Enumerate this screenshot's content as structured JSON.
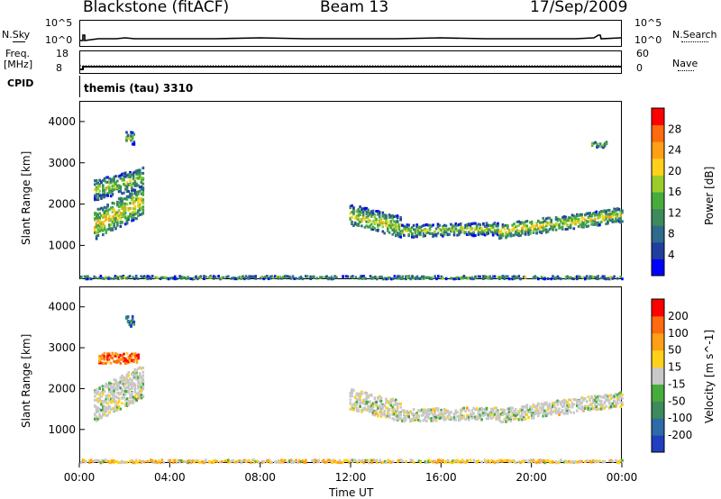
{
  "header": {
    "station": "Blackstone (fitACF)",
    "beam": "Beam 13",
    "date": "17/Sep/2009"
  },
  "summary": {
    "nsky_label": "N.Sky",
    "nsky_ticks": [
      "10^5",
      "10^0"
    ],
    "nsearch_label": "N.Search",
    "nsearch_ticks": [
      "10^5",
      "10^0"
    ],
    "freq_label": "Freq.",
    "freq_unit": "[MHz]",
    "freq_ticks": [
      "18",
      "8"
    ],
    "nave_label": "Nave",
    "nave_ticks": [
      "60",
      "0"
    ],
    "cpid_label": "CPID",
    "cpid_value": "themis (tau) 3310"
  },
  "chart_data": [
    {
      "type": "heatmap",
      "title": "",
      "xlabel": "Time UT",
      "ylabel": "Slant Range [km]",
      "x_ticks": [
        "00:00",
        "04:00",
        "08:00",
        "12:00",
        "16:00",
        "20:00",
        "00:00"
      ],
      "xlim_hours": [
        0,
        24
      ],
      "ylim": [
        180,
        4500
      ],
      "y_ticks": [
        1000,
        2000,
        3000,
        4000
      ],
      "colorbar": {
        "label": "Power [dB]",
        "ticks": [
          "4",
          "8",
          "12",
          "16",
          "20",
          "24",
          "28"
        ],
        "colors": [
          "#0000ff",
          "#1f3f9f",
          "#2e6a8c",
          "#3d8a5c",
          "#46ad3c",
          "#9bcc2a",
          "#ffd11a",
          "#ff9f16",
          "#ff6a10",
          "#ff0000"
        ]
      },
      "bands": [
        {
          "t0": 0.6,
          "t1": 2.8,
          "r_center": 1800,
          "r_width": 700,
          "slope": 600,
          "level": 0.55
        },
        {
          "t0": 0.6,
          "t1": 2.8,
          "r_center": 2500,
          "r_width": 500,
          "slope": 300,
          "level": 0.3
        },
        {
          "t0": 11.9,
          "t1": 14.2,
          "r_center": 1600,
          "r_width": 500,
          "slope": -300,
          "level": 0.4
        },
        {
          "t0": 14.2,
          "t1": 18.5,
          "r_center": 1380,
          "r_width": 300,
          "slope": 50,
          "level": 0.3
        },
        {
          "t0": 18.5,
          "t1": 24.0,
          "r_center": 1550,
          "r_width": 350,
          "slope": 400,
          "level": 0.5
        },
        {
          "t0": 2.0,
          "t1": 2.4,
          "r_center": 3600,
          "r_width": 300,
          "slope": 0,
          "level": 0.2
        },
        {
          "t0": 22.6,
          "t1": 23.3,
          "r_center": 3450,
          "r_width": 150,
          "slope": 0,
          "level": 0.2
        },
        {
          "t0": 0.0,
          "t1": 24.0,
          "r_center": 230,
          "r_width": 70,
          "slope": 0,
          "level": 0.2
        }
      ]
    },
    {
      "type": "heatmap",
      "title": "",
      "xlabel": "Time UT",
      "ylabel": "Slant Range [km]",
      "x_ticks": [
        "00:00",
        "04:00",
        "08:00",
        "12:00",
        "16:00",
        "20:00",
        "00:00"
      ],
      "xlim_hours": [
        0,
        24
      ],
      "ylim": [
        180,
        4500
      ],
      "y_ticks": [
        1000,
        2000,
        3000,
        4000
      ],
      "colorbar": {
        "label": "Velocity [m s^-1]",
        "ticks": [
          "200",
          "100",
          "50",
          "15",
          "-15",
          "-50",
          "-100",
          "-200"
        ],
        "colors": [
          "#1f3fbf",
          "#2e6aa8",
          "#3d8a5c",
          "#46ad3c",
          "#c8c8c8",
          "#ffd11a",
          "#ff9f16",
          "#ff6a10",
          "#ff0000"
        ]
      },
      "bands": [
        {
          "t0": 0.6,
          "t1": 2.8,
          "r_center": 1900,
          "r_width": 800,
          "slope": 600,
          "level": 0.0
        },
        {
          "t0": 0.8,
          "t1": 2.6,
          "r_center": 2750,
          "r_width": 250,
          "slope": 0,
          "level": 0.6
        },
        {
          "t0": 11.9,
          "t1": 14.2,
          "r_center": 1600,
          "r_width": 500,
          "slope": -300,
          "level": 0.0
        },
        {
          "t0": 14.2,
          "t1": 18.5,
          "r_center": 1380,
          "r_width": 300,
          "slope": 50,
          "level": 0.0
        },
        {
          "t0": 18.5,
          "t1": 24.0,
          "r_center": 1550,
          "r_width": 350,
          "slope": 400,
          "level": 0.0
        },
        {
          "t0": 2.0,
          "t1": 2.4,
          "r_center": 3650,
          "r_width": 250,
          "slope": 0,
          "level": -0.6
        },
        {
          "t0": 0.0,
          "t1": 24.0,
          "r_center": 230,
          "r_width": 70,
          "slope": 0,
          "level": 0.2
        }
      ]
    }
  ]
}
